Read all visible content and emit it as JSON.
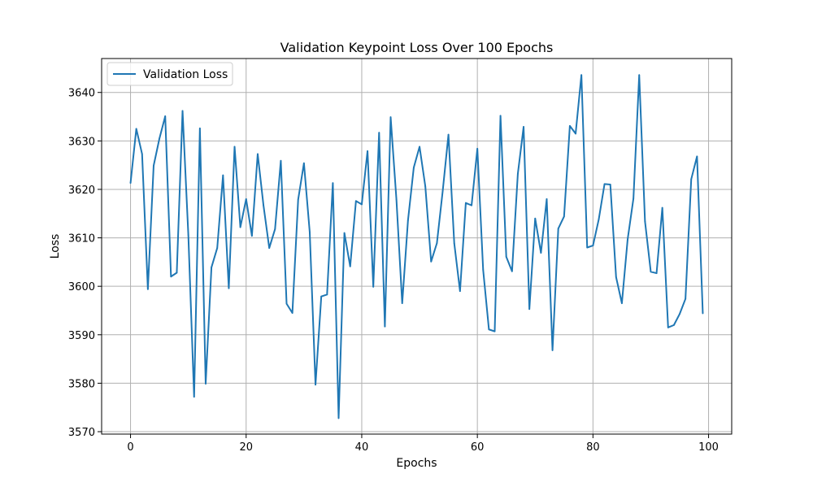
{
  "chart_data": {
    "type": "line",
    "title": "Validation Keypoint Loss Over 100 Epochs",
    "xlabel": "Epochs",
    "ylabel": "Loss",
    "xlim": [
      -5,
      104
    ],
    "ylim": [
      3569.5,
      3647
    ],
    "xticks": [
      0,
      20,
      40,
      60,
      80,
      100
    ],
    "yticks": [
      3570,
      3580,
      3590,
      3600,
      3610,
      3620,
      3630,
      3640
    ],
    "grid": true,
    "legend_position": "top-left",
    "series": [
      {
        "name": "Validation Loss",
        "color": "#1f77b4",
        "x": [
          0,
          1,
          2,
          3,
          4,
          5,
          6,
          7,
          8,
          9,
          10,
          11,
          12,
          13,
          14,
          15,
          16,
          17,
          18,
          19,
          20,
          21,
          22,
          23,
          24,
          25,
          26,
          27,
          28,
          29,
          30,
          31,
          32,
          33,
          34,
          35,
          36,
          37,
          38,
          39,
          40,
          41,
          42,
          43,
          44,
          45,
          46,
          47,
          48,
          49,
          50,
          51,
          52,
          53,
          54,
          55,
          56,
          57,
          58,
          59,
          60,
          61,
          62,
          63,
          64,
          65,
          66,
          67,
          68,
          69,
          70,
          71,
          72,
          73,
          74,
          75,
          76,
          77,
          78,
          79,
          80,
          81,
          82,
          83,
          84,
          85,
          86,
          87,
          88,
          89,
          90,
          91,
          92,
          93,
          94,
          95,
          96,
          97,
          98,
          99
        ],
        "values": [
          3621.3,
          3632.5,
          3627.3,
          3599.4,
          3624.9,
          3630.5,
          3635.1,
          3602.0,
          3602.8,
          3636.2,
          3610.6,
          3577.2,
          3632.6,
          3579.9,
          3603.9,
          3607.9,
          3622.9,
          3599.6,
          3628.8,
          3612.2,
          3618.0,
          3610.4,
          3627.3,
          3616.7,
          3607.9,
          3611.8,
          3625.9,
          3596.4,
          3594.5,
          3617.9,
          3625.4,
          3611.2,
          3579.7,
          3597.9,
          3598.3,
          3621.3,
          3572.8,
          3611.0,
          3604.1,
          3617.6,
          3616.9,
          3627.9,
          3599.9,
          3631.7,
          3591.7,
          3634.9,
          3617.9,
          3596.5,
          3613.6,
          3624.5,
          3628.8,
          3620.6,
          3605.1,
          3608.9,
          3619.6,
          3631.3,
          3608.9,
          3599.0,
          3617.2,
          3616.7,
          3628.4,
          3603.4,
          3591.1,
          3590.7,
          3635.2,
          3606.1,
          3603.1,
          3623.2,
          3632.9,
          3595.3,
          3614.0,
          3606.9,
          3618.0,
          3586.8,
          3611.9,
          3614.4,
          3633.1,
          3631.5,
          3643.6,
          3608.0,
          3608.4,
          3613.8,
          3621.1,
          3621.0,
          3601.9,
          3596.5,
          3609.7,
          3618.1,
          3643.6,
          3613.4,
          3603.0,
          3602.7,
          3616.2,
          3591.5,
          3592.0,
          3594.3,
          3597.4,
          3622.1,
          3626.8,
          3594.4
        ]
      }
    ]
  }
}
